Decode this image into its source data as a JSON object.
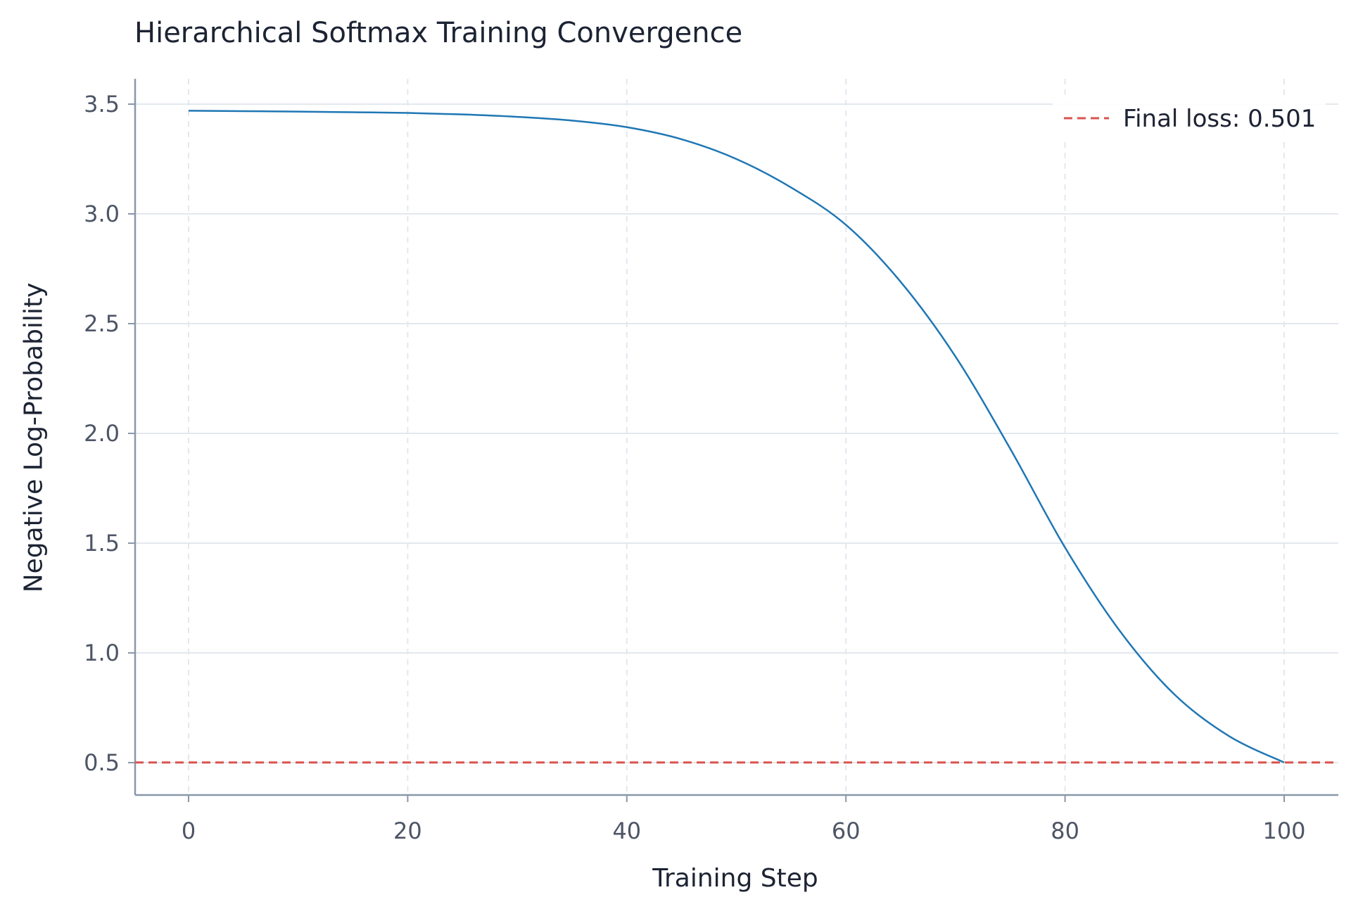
{
  "chart_data": {
    "type": "line",
    "title": "Hierarchical Softmax Training Convergence",
    "xlabel": "Training Step",
    "ylabel": "Negative Log-Probability",
    "xlim": [
      -5,
      105
    ],
    "ylim": [
      0.35,
      3.6
    ],
    "xticks": [
      0,
      20,
      40,
      60,
      80,
      100
    ],
    "yticks": [
      0.5,
      1.0,
      1.5,
      2.0,
      2.5,
      3.0,
      3.5
    ],
    "grid": true,
    "legend_position": "top-right",
    "series": [
      {
        "color": "#1f77b4",
        "x": [
          0,
          5,
          10,
          15,
          20,
          25,
          30,
          35,
          40,
          45,
          50,
          55,
          60,
          65,
          70,
          75,
          80,
          85,
          90,
          95,
          100
        ],
        "y": [
          3.47,
          3.468,
          3.466,
          3.463,
          3.46,
          3.453,
          3.442,
          3.425,
          3.395,
          3.34,
          3.25,
          3.12,
          2.95,
          2.69,
          2.35,
          1.93,
          1.48,
          1.1,
          0.81,
          0.62,
          0.501
        ]
      }
    ],
    "reference_line": {
      "y": 0.501,
      "label": "Final loss: 0.501",
      "color": "#d9534f",
      "style": "dashed"
    }
  }
}
